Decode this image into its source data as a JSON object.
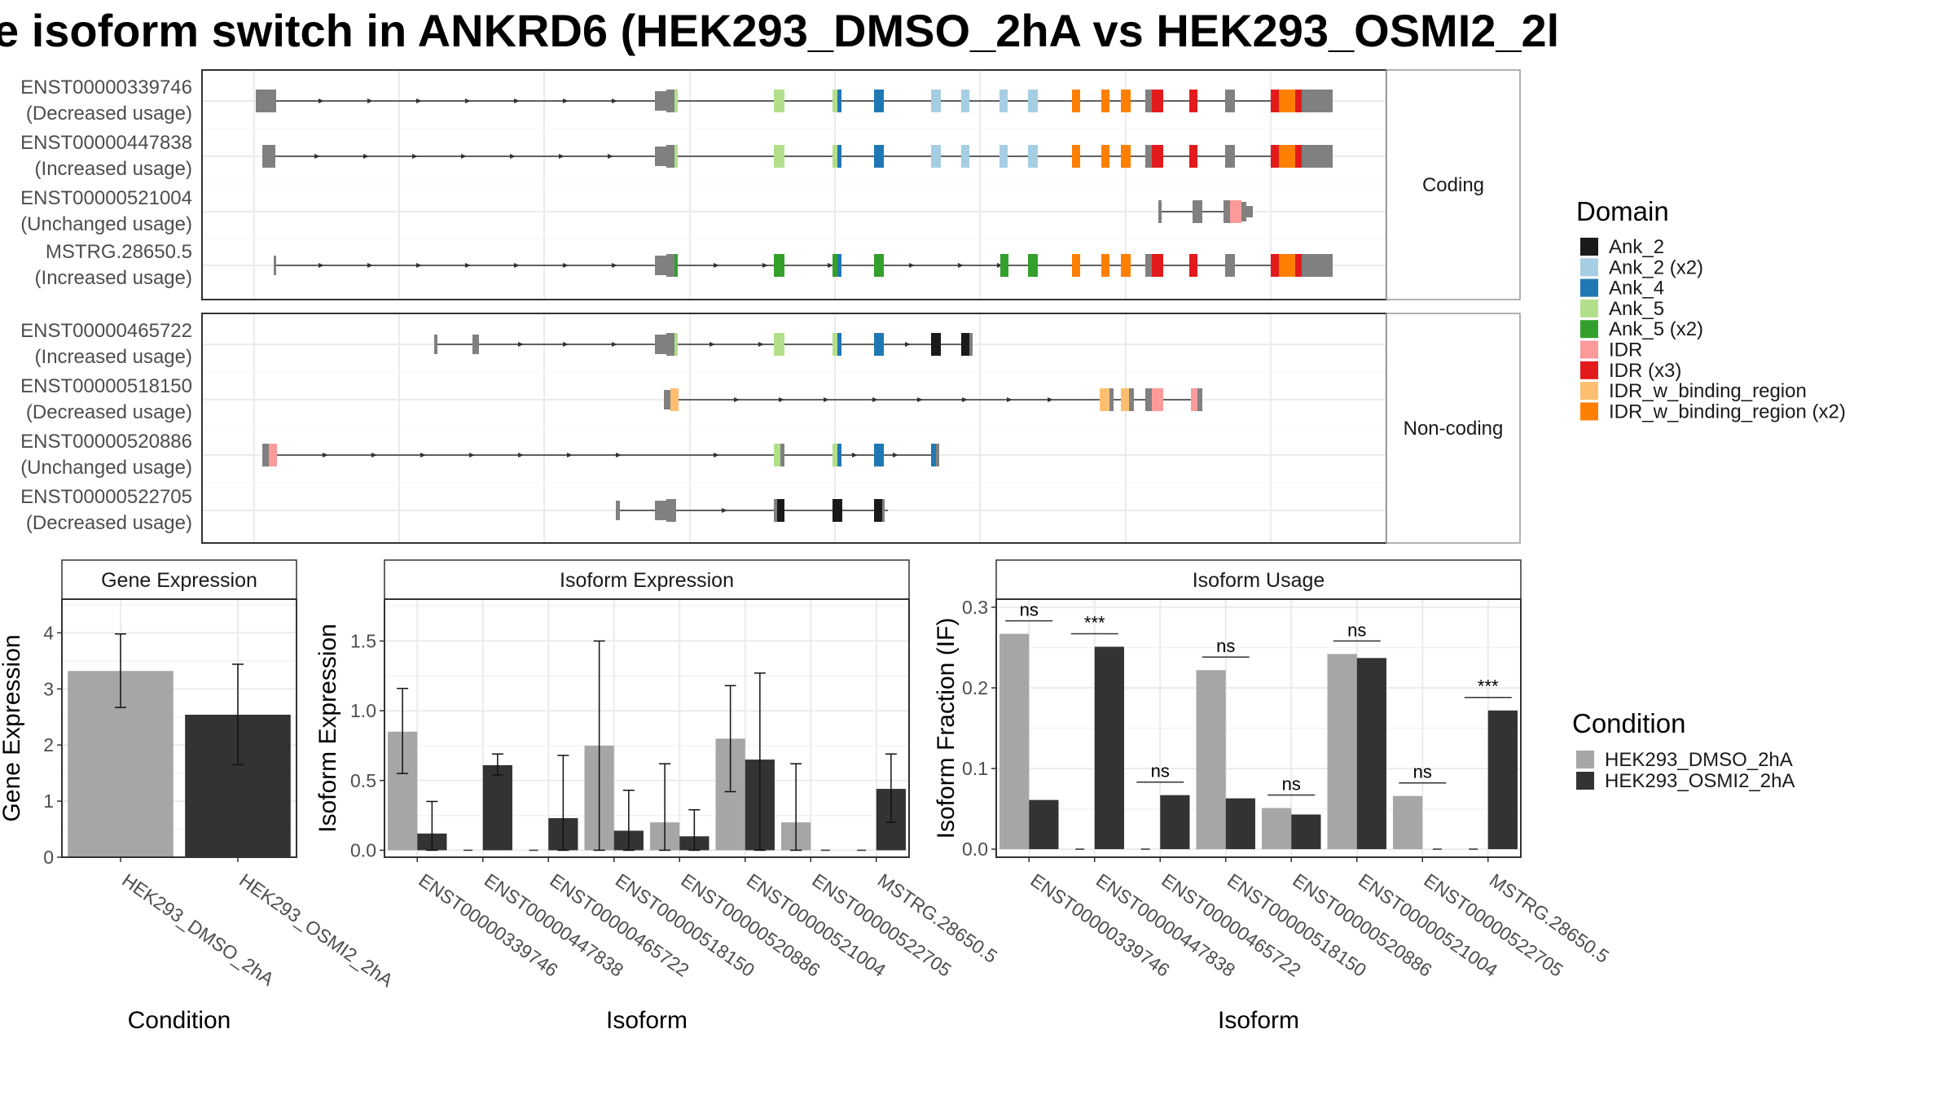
{
  "title": "e isoform switch in ANKRD6 (HEK293_DMSO_2hA vs HEK293_OSMI2_2l",
  "colors": {
    "dmso": "#a6a6a6",
    "osmi2": "#333333",
    "exon": "#808080",
    "Ank_2": "#1a1a1a",
    "Ank_2 (x2)": "#a6cee3",
    "Ank_4": "#1f78b4",
    "Ank_5": "#b2df8a",
    "Ank_5 (x2)": "#33a02c",
    "IDR": "#fb9a99",
    "IDR (x3)": "#e31a1c",
    "IDR_w_binding_region": "#fdbf6f",
    "IDR_w_binding_region (x2)": "#ff7f00"
  },
  "structure": {
    "groups": [
      {
        "label": "Coding",
        "transcripts": [
          {
            "id": "ENST00000339746",
            "usage": "(Decreased usage)"
          },
          {
            "id": "ENST00000447838",
            "usage": "(Increased usage)"
          },
          {
            "id": "ENST00000521004",
            "usage": "(Unchanged usage)"
          },
          {
            "id": "MSTRG.28650.5",
            "usage": "(Increased usage)"
          }
        ]
      },
      {
        "label": "Non-coding",
        "transcripts": [
          {
            "id": "ENST00000465722",
            "usage": "(Increased usage)"
          },
          {
            "id": "ENST00000518150",
            "usage": "(Decreased usage)"
          },
          {
            "id": "ENST00000520886",
            "usage": "(Unchanged usage)"
          },
          {
            "id": "ENST00000522705",
            "usage": "(Decreased usage)"
          }
        ]
      }
    ]
  },
  "domain_legend": {
    "title": "Domain",
    "items": [
      "Ank_2",
      "Ank_2 (x2)",
      "Ank_4",
      "Ank_5",
      "Ank_5 (x2)",
      "IDR",
      "IDR (x3)",
      "IDR_w_binding_region",
      "IDR_w_binding_region (x2)"
    ]
  },
  "condition_legend": {
    "title": "Condition",
    "items": [
      "HEK293_DMSO_2hA",
      "HEK293_OSMI2_2hA"
    ]
  },
  "chart_data": [
    {
      "type": "bar",
      "title": "Gene Expression",
      "xlabel": "Condition",
      "ylabel": "Gene Expression",
      "ylim": [
        0,
        4.6
      ],
      "yticks": [
        0,
        1,
        2,
        3,
        4
      ],
      "categories": [
        "HEK293_DMSO_2hA",
        "HEK293_OSMI2_2hA"
      ],
      "values": [
        3.32,
        2.54
      ],
      "error_low": [
        2.67,
        1.65
      ],
      "error_high": [
        3.98,
        3.44
      ]
    },
    {
      "type": "bar",
      "title": "Isoform Expression",
      "xlabel": "Isoform",
      "ylabel": "Isoform Expression",
      "ylim": [
        -0.05,
        1.8
      ],
      "yticks": [
        0.0,
        0.5,
        1.0,
        1.5
      ],
      "categories": [
        "ENST00000339746",
        "ENST00000447838",
        "ENST00000465722",
        "ENST00000518150",
        "ENST00000520886",
        "ENST00000521004",
        "ENST00000522705",
        "MSTRG.28650.5"
      ],
      "series": [
        {
          "name": "HEK293_DMSO_2hA",
          "values": [
            0.85,
            0,
            0,
            0.75,
            0.2,
            0.8,
            0.2,
            0
          ],
          "error_low": [
            0.55,
            0,
            0,
            0,
            0,
            0.42,
            0,
            0
          ],
          "error_high": [
            1.16,
            0,
            0,
            1.5,
            0.62,
            1.18,
            0.62,
            0
          ]
        },
        {
          "name": "HEK293_OSMI2_2hA",
          "values": [
            0.12,
            0.61,
            0.23,
            0.14,
            0.1,
            0.65,
            0,
            0.44
          ],
          "error_low": [
            0,
            0.54,
            0,
            0,
            0,
            0,
            0,
            0.2
          ],
          "error_high": [
            0.35,
            0.69,
            0.68,
            0.43,
            0.29,
            1.27,
            0,
            0.69
          ]
        }
      ]
    },
    {
      "type": "bar",
      "title": "Isoform Usage",
      "xlabel": "Isoform",
      "ylabel": "Isoform Fraction (IF)",
      "ylim": [
        -0.01,
        0.31
      ],
      "yticks": [
        0.0,
        0.1,
        0.2,
        0.3
      ],
      "categories": [
        "ENST00000339746",
        "ENST00000447838",
        "ENST00000465722",
        "ENST00000518150",
        "ENST00000520886",
        "ENST00000521004",
        "ENST00000522705",
        "MSTRG.28650.5"
      ],
      "series": [
        {
          "name": "HEK293_DMSO_2hA",
          "values": [
            0.267,
            0,
            0,
            0.222,
            0.051,
            0.242,
            0.066,
            0
          ]
        },
        {
          "name": "HEK293_OSMI2_2hA",
          "values": [
            0.061,
            0.251,
            0.067,
            0.063,
            0.043,
            0.237,
            0,
            0.172
          ]
        }
      ],
      "significance": [
        "ns",
        "***",
        "ns",
        "ns",
        "ns",
        "ns",
        "ns",
        "***"
      ]
    }
  ]
}
